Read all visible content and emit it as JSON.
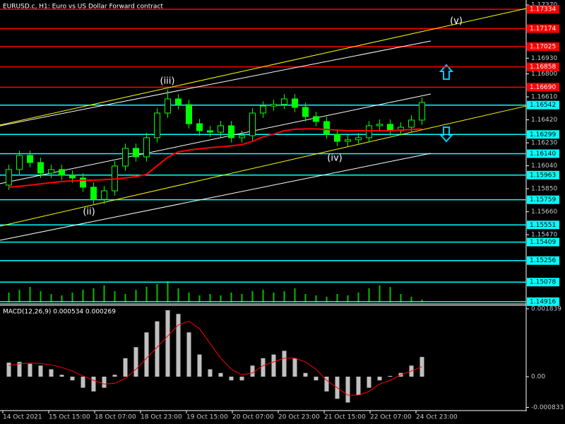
{
  "chart_data": [
    {
      "type": "candlestick",
      "title": "EURUSD.c, H1:  Euro vs US Dollar Forward contract",
      "color": "#00ff00",
      "open": [
        1.1588,
        1.16009,
        1.16126,
        1.16067,
        1.15979,
        1.16009,
        1.15962,
        1.15939,
        1.15863,
        1.15763,
        1.15833,
        1.16038,
        1.16184,
        1.16114,
        1.16272,
        1.16476,
        1.16593,
        1.16546,
        1.16388,
        1.1633,
        1.16318,
        1.16371,
        1.16272,
        1.16289,
        1.16476,
        1.16534,
        1.16548,
        1.16593,
        1.16523,
        1.16447,
        1.16406,
        1.16301,
        1.16242,
        1.16255,
        1.16272,
        1.16371,
        1.16383,
        1.1633,
        1.16359,
        1.16418
      ],
      "high": [
        1.16049,
        1.16166,
        1.16166,
        1.16107,
        1.16049,
        1.16049,
        1.16002,
        1.15979,
        1.15903,
        1.15873,
        1.16078,
        1.16224,
        1.16224,
        1.16312,
        1.16516,
        1.1667,
        1.16633,
        1.16586,
        1.16428,
        1.1637,
        1.16411,
        1.16411,
        1.16329,
        1.16516,
        1.16574,
        1.16588,
        1.16633,
        1.16633,
        1.16563,
        1.16487,
        1.16446,
        1.16341,
        1.16295,
        1.16312,
        1.16411,
        1.16423,
        1.16423,
        1.16399,
        1.16458,
        1.16604
      ],
      "low": [
        1.1584,
        1.15969,
        1.16027,
        1.15939,
        1.15939,
        1.15922,
        1.15899,
        1.15823,
        1.15723,
        1.15723,
        1.15793,
        1.15998,
        1.16074,
        1.16074,
        1.16232,
        1.16436,
        1.16506,
        1.16348,
        1.1629,
        1.16278,
        1.16278,
        1.16232,
        1.16232,
        1.16249,
        1.16436,
        1.16494,
        1.16508,
        1.16483,
        1.16407,
        1.16366,
        1.16261,
        1.16202,
        1.16202,
        1.16215,
        1.16232,
        1.16331,
        1.1629,
        1.1629,
        1.16319,
        1.16378
      ],
      "close": [
        1.16009,
        1.16126,
        1.16067,
        1.15979,
        1.16009,
        1.15962,
        1.15939,
        1.15863,
        1.15763,
        1.15833,
        1.16038,
        1.16184,
        1.16114,
        1.16272,
        1.16476,
        1.16593,
        1.16546,
        1.16388,
        1.1633,
        1.16318,
        1.16371,
        1.16272,
        1.16289,
        1.16476,
        1.16534,
        1.16548,
        1.16593,
        1.16523,
        1.16447,
        1.16406,
        1.16301,
        1.16242,
        1.16255,
        1.16272,
        1.16371,
        1.16383,
        1.1633,
        1.16359,
        1.16418,
        1.16564
      ],
      "ma": {
        "color": "#ff0000",
        "values": [
          1.15863,
          1.1587,
          1.1588,
          1.1589,
          1.159,
          1.1591,
          1.15915,
          1.1592,
          1.15921,
          1.15925,
          1.1593,
          1.1594,
          1.1595,
          1.1597,
          1.1604,
          1.1611,
          1.16155,
          1.1617,
          1.1618,
          1.1619,
          1.16196,
          1.16205,
          1.16215,
          1.16242,
          1.1628,
          1.16301,
          1.1633,
          1.16342,
          1.16345,
          1.16345,
          1.1634,
          1.16335,
          1.1633,
          1.1633,
          1.1633,
          1.1633,
          1.1633,
          1.16335,
          1.1634,
          1.16345
        ]
      },
      "volume": {
        "color": "#00c000",
        "values": [
          14,
          18,
          22,
          16,
          12,
          10,
          14,
          18,
          20,
          24,
          16,
          12,
          18,
          22,
          26,
          30,
          20,
          14,
          10,
          12,
          10,
          14,
          12,
          16,
          18,
          14,
          16,
          20,
          12,
          10,
          8,
          12,
          10,
          14,
          20,
          24,
          22,
          12,
          8,
          4
        ]
      },
      "ylim": [
        1.14898,
        1.17411
      ],
      "yticks": [
        {
          "value": 1.1737,
          "label": "1.17370"
        },
        {
          "value": 1.1693,
          "label": "1.16930"
        },
        {
          "value": 1.168,
          "label": "1.16800"
        },
        {
          "value": 1.1661,
          "label": "1.16610"
        },
        {
          "value": 1.1642,
          "label": "1.16420"
        },
        {
          "value": 1.1623,
          "label": "1.16230"
        },
        {
          "value": 1.1604,
          "label": "1.16040"
        },
        {
          "value": 1.1585,
          "label": "1.15850"
        },
        {
          "value": 1.1566,
          "label": "1.15660"
        },
        {
          "value": 1.1547,
          "label": "1.15470"
        }
      ],
      "levels": [
        {
          "value": 1.17334,
          "color": "#ff0000"
        },
        {
          "value": 1.17174,
          "color": "#ff0000"
        },
        {
          "value": 1.17025,
          "color": "#ff0000"
        },
        {
          "value": 1.16858,
          "color": "#ff0000"
        },
        {
          "value": 1.1669,
          "label": "1.16690",
          "color": "#ff0000"
        },
        {
          "value": 1.16542,
          "color": "#00ffff"
        },
        {
          "value": 1.16299,
          "color": "#00ffff"
        },
        {
          "value": 1.1614,
          "label": "1.16140",
          "color": "#00ffff"
        },
        {
          "value": 1.15963,
          "color": "#00ffff"
        },
        {
          "value": 1.15759,
          "color": "#00ffff"
        },
        {
          "value": 1.15551,
          "color": "#00ffff"
        },
        {
          "value": 1.15409,
          "color": "#00ffff"
        },
        {
          "value": 1.15256,
          "color": "#00ffff"
        },
        {
          "value": 1.15078,
          "color": "#00ffff"
        },
        {
          "value": 1.14916,
          "color": "#00ffff"
        }
      ],
      "trendlines": [
        {
          "color": "#ffff00",
          "x": [
            -0.83,
            48.83
          ],
          "y": [
            1.16377,
            1.17341
          ]
        },
        {
          "color": "#ffff00",
          "x": [
            -0.83,
            48.83
          ],
          "y": [
            1.15541,
            1.16534
          ]
        },
        {
          "color": "#ffffff",
          "x": [
            -0.83,
            39.83
          ],
          "y": [
            1.16371,
            1.17072
          ]
        },
        {
          "color": "#ffffff",
          "x": [
            -0.83,
            39.83
          ],
          "y": [
            1.15892,
            1.16634
          ]
        },
        {
          "color": "#ffffff",
          "x": [
            -0.83,
            39.83
          ],
          "y": [
            1.15424,
            1.16143
          ]
        }
      ],
      "annotations": [
        "(ii)",
        "(iii)",
        "(iv)",
        "(v)"
      ],
      "xlabels": [
        "14 Oct 2021",
        "15 Oct 15:00",
        "18 Oct 07:00",
        "18 Oct 23:00",
        "19 Oct 15:00",
        "20 Oct 07:00",
        "20 Oct 23:00",
        "21 Oct 15:00",
        "22 Oct 07:00",
        "24 Oct 23:00"
      ]
    },
    {
      "type": "macd",
      "title": "MACD(12,26,9) 0.000534 0.000269",
      "color": "#c0c0c0",
      "values": [
        0.00038,
        0.0004,
        0.00035,
        0.0003,
        0.0002,
        5e-05,
        -0.0001,
        -0.0003,
        -0.0004,
        -0.0003,
        5e-05,
        0.0005,
        0.0008,
        0.0012,
        0.0015,
        0.0018,
        0.0017,
        0.0012,
        0.0006,
        0.0002,
        0.0001,
        -0.0001,
        -0.0001,
        0.0003,
        0.0005,
        0.0006,
        0.0007,
        0.0005,
        0.0001,
        -0.0001,
        -0.0004,
        -0.0006,
        -0.0007,
        -0.0005,
        -0.0003,
        -0.0001,
        2e-05,
        0.0001,
        0.0003,
        0.000534
      ],
      "signal": {
        "color": "#ff0000",
        "values": [
          0.0003,
          0.00035,
          0.00037,
          0.00036,
          0.00032,
          0.00025,
          0.00015,
          2e-05,
          -0.0001,
          -0.0002,
          -0.00018,
          -5e-05,
          0.0002,
          0.0005,
          0.0008,
          0.0011,
          0.0014,
          0.0015,
          0.0013,
          0.0009,
          0.0005,
          0.0002,
          5e-05,
          0.0001,
          0.0003,
          0.0004,
          0.0005,
          0.0005,
          0.0004,
          0.0002,
          -0.0001,
          -0.0003,
          -0.0005,
          -0.0005,
          -0.0004,
          -0.0002,
          -0.0001,
          5e-05,
          0.00015,
          0.000269
        ]
      },
      "ylim": [
        -0.0009,
        0.001935
      ],
      "yticks": [
        0.001839,
        {
          "value": 0,
          "label": "0.00"
        },
        -0.000833
      ]
    }
  ]
}
